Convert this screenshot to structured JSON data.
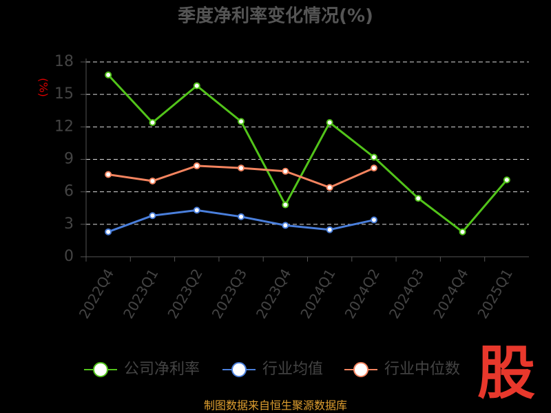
{
  "chart_data": {
    "type": "line",
    "title": "季度净利率变化情况(%)",
    "y_label": "(%)",
    "categories": [
      "2022Q4",
      "2023Q1",
      "2023Q2",
      "2023Q3",
      "2023Q4",
      "2024Q1",
      "2024Q2",
      "2024Q3",
      "2024Q4",
      "2025Q1"
    ],
    "series": [
      {
        "name": "公司净利率",
        "color": "#52c41a",
        "values": [
          16.8,
          12.4,
          15.8,
          12.5,
          4.8,
          12.4,
          9.2,
          5.4,
          2.3,
          7.1
        ]
      },
      {
        "name": "行业均值",
        "color": "#4a7fdc",
        "values": [
          2.3,
          3.8,
          4.3,
          3.7,
          2.9,
          2.5,
          3.4,
          null,
          null,
          null
        ]
      },
      {
        "name": "行业中位数",
        "color": "#f4845f",
        "values": [
          7.6,
          7.0,
          8.4,
          8.2,
          7.9,
          6.4,
          8.2,
          null,
          null,
          null
        ]
      }
    ],
    "ylim": [
      0,
      18
    ],
    "yticks": [
      0,
      3,
      6,
      9,
      12,
      15,
      18
    ],
    "grid": true,
    "source": "制图数据来自恒生聚源数据库",
    "watermark": "股"
  }
}
